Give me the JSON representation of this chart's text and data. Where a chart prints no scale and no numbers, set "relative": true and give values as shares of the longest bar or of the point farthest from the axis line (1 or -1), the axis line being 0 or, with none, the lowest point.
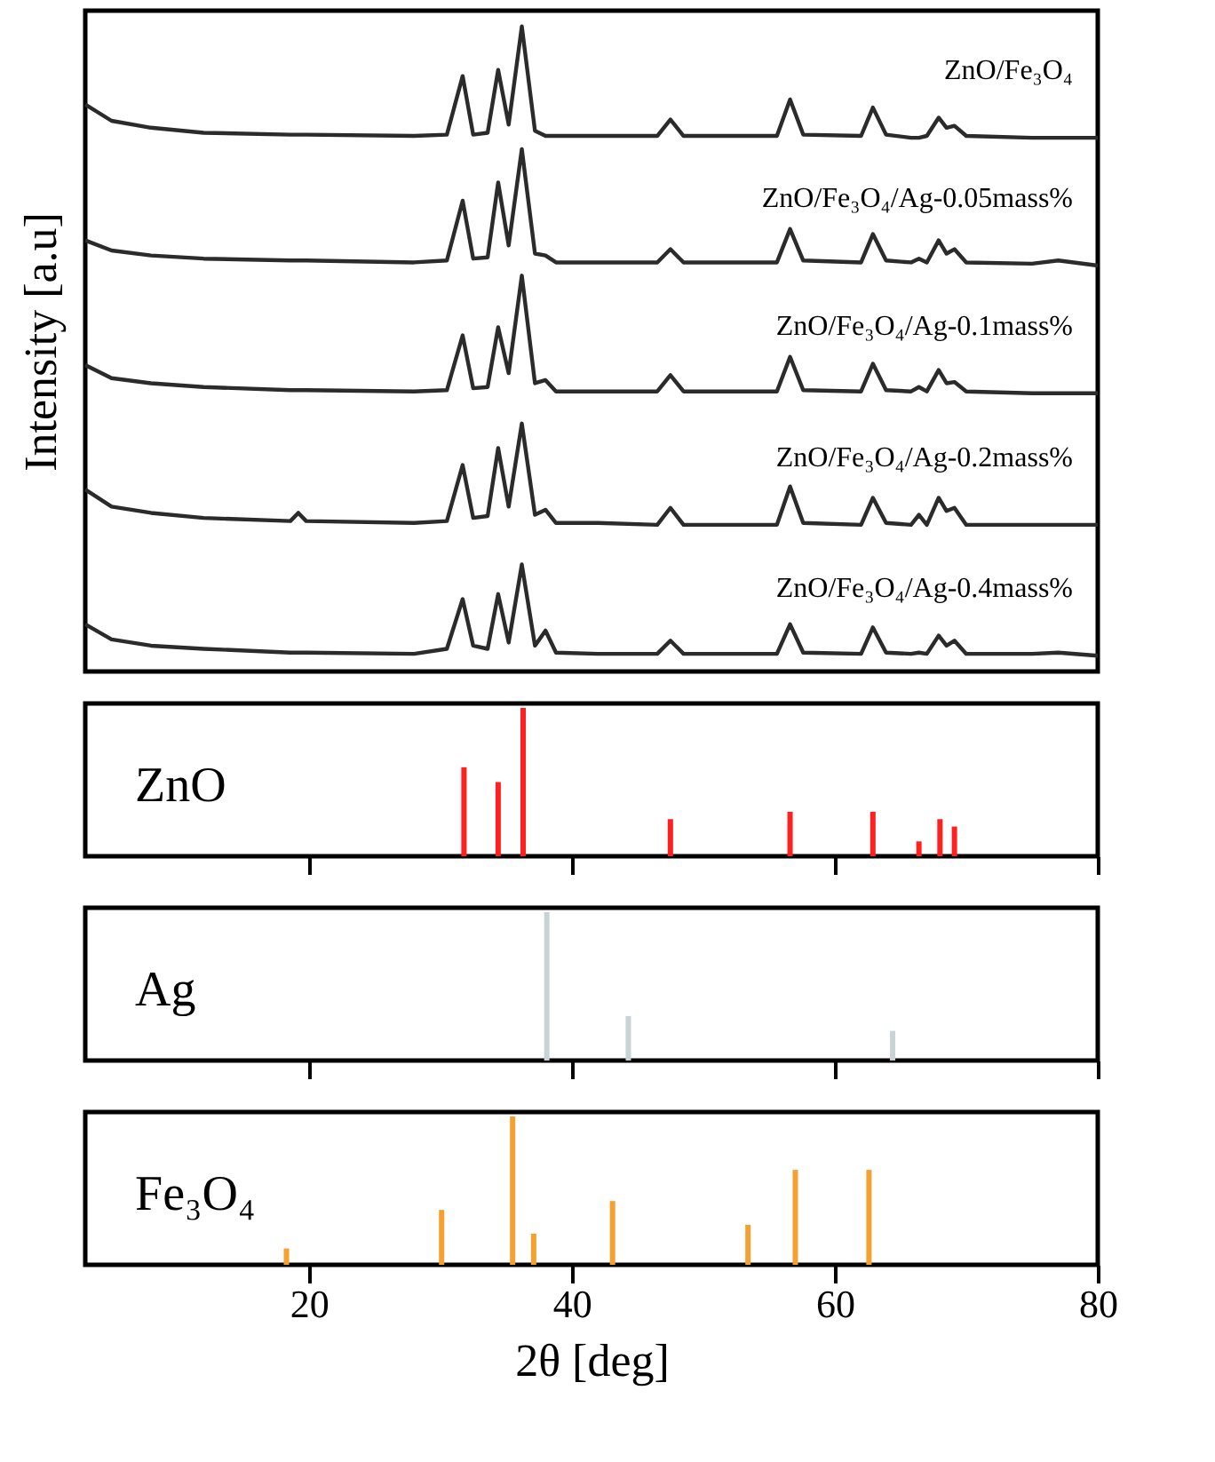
{
  "chart_data": [
    {
      "type": "line",
      "relative": true,
      "ylabel": "Intensity [a.u]",
      "xlim": [
        3,
        80
      ],
      "tick_labels": false,
      "x": [
        3,
        5,
        8,
        12,
        18.6,
        19.2,
        19.8,
        28,
        30.5,
        31.7,
        32.5,
        33.6,
        34.4,
        35.2,
        36.2,
        37.2,
        38,
        38.8,
        42,
        46.5,
        47.5,
        48.5,
        55.6,
        56.6,
        57.6,
        62,
        62.9,
        63.9,
        65.8,
        66.4,
        67,
        67.9,
        68.5,
        69.1,
        70,
        75,
        77,
        80
      ],
      "series": [
        {
          "name": "ZnO/Fe₃O₄",
          "color": "#2b2b2b",
          "values": [
            0.876,
            0.85,
            0.839,
            0.831,
            0.828,
            0.828,
            0.828,
            0.826,
            0.828,
            0.921,
            0.828,
            0.831,
            0.931,
            0.844,
            1.0,
            0.834,
            0.826,
            0.826,
            0.826,
            0.826,
            0.852,
            0.826,
            0.826,
            0.884,
            0.828,
            0.826,
            0.871,
            0.828,
            0.823,
            0.823,
            0.826,
            0.855,
            0.839,
            0.842,
            0.826,
            0.823,
            0.823,
            0.823
          ]
        },
        {
          "name": "ZnO/Fe₃O₄/Ag-0.05mass%",
          "color": "#2b2b2b",
          "values": [
            0.66,
            0.644,
            0.636,
            0.631,
            0.628,
            0.628,
            0.628,
            0.625,
            0.628,
            0.723,
            0.631,
            0.633,
            0.752,
            0.652,
            0.805,
            0.639,
            0.636,
            0.625,
            0.625,
            0.625,
            0.646,
            0.625,
            0.625,
            0.678,
            0.628,
            0.625,
            0.67,
            0.628,
            0.625,
            0.631,
            0.625,
            0.66,
            0.639,
            0.646,
            0.625,
            0.623,
            0.628,
            0.62
          ]
        },
        {
          "name": "ZnO/Fe₃O₄/Ag-0.1mass%",
          "color": "#2b2b2b",
          "values": [
            0.462,
            0.441,
            0.433,
            0.427,
            0.422,
            0.422,
            0.422,
            0.42,
            0.422,
            0.509,
            0.425,
            0.427,
            0.522,
            0.449,
            0.604,
            0.433,
            0.438,
            0.42,
            0.42,
            0.42,
            0.446,
            0.42,
            0.42,
            0.475,
            0.422,
            0.42,
            0.464,
            0.422,
            0.42,
            0.427,
            0.42,
            0.454,
            0.433,
            0.435,
            0.42,
            0.417,
            0.417,
            0.417
          ]
        },
        {
          "name": "ZnO/Fe₃O₄/Ag-0.2mass%",
          "color": "#2b2b2b",
          "values": [
            0.264,
            0.237,
            0.227,
            0.219,
            0.214,
            0.227,
            0.214,
            0.211,
            0.214,
            0.303,
            0.219,
            0.222,
            0.33,
            0.237,
            0.369,
            0.224,
            0.232,
            0.211,
            0.211,
            0.208,
            0.235,
            0.208,
            0.208,
            0.269,
            0.211,
            0.208,
            0.251,
            0.211,
            0.208,
            0.224,
            0.208,
            0.251,
            0.23,
            0.235,
            0.208,
            0.208,
            0.208,
            0.208
          ]
        },
        {
          "name": "ZnO/Fe₃O₄/Ag-0.4mass%",
          "color": "#2b2b2b",
          "values": [
            0.05,
            0.026,
            0.016,
            0.011,
            0.005,
            0.005,
            0.005,
            0.003,
            0.011,
            0.09,
            0.016,
            0.011,
            0.098,
            0.021,
            0.145,
            0.016,
            0.04,
            0.005,
            0.003,
            0.003,
            0.024,
            0.003,
            0.003,
            0.05,
            0.005,
            0.003,
            0.045,
            0.005,
            0.003,
            0.005,
            0.003,
            0.032,
            0.016,
            0.024,
            0.003,
            0.003,
            0.005,
            0
          ]
        }
      ]
    },
    {
      "type": "bar",
      "relative": true,
      "xlim": [
        3,
        80
      ],
      "xticks": [
        20,
        40,
        60,
        80
      ],
      "tick_labels": false,
      "series": [
        {
          "name": "ZnO",
          "color": "#ff2020",
          "x": [
            31.8,
            34.4,
            36.3,
            47.5,
            56.6,
            62.9,
            66.4,
            68.0,
            69.1
          ],
          "values": [
            0.6,
            0.5,
            1,
            0.25,
            0.3,
            0.3,
            0.1,
            0.25,
            0.2
          ]
        }
      ]
    },
    {
      "type": "bar",
      "relative": true,
      "xlim": [
        3,
        80
      ],
      "xticks": [
        20,
        40,
        60,
        80
      ],
      "tick_labels": false,
      "series": [
        {
          "name": "Ag",
          "color": "#c8d4d4",
          "x": [
            38.1,
            44.3,
            64.4
          ],
          "values": [
            1,
            0.3,
            0.2
          ]
        }
      ]
    },
    {
      "type": "bar",
      "relative": true,
      "xlim": [
        3,
        80
      ],
      "xticks": [
        20,
        40,
        60,
        80
      ],
      "tick_labels": "x",
      "xlabel": "2θ [deg]",
      "series": [
        {
          "name": "Fe₃O₄",
          "color": "#f5a030",
          "x": [
            18.3,
            30.1,
            35.5,
            37.1,
            43.1,
            53.4,
            57.0,
            62.6
          ],
          "values": [
            0.11,
            0.37,
            1,
            0.21,
            0.43,
            0.27,
            0.64,
            0.64
          ]
        }
      ]
    }
  ]
}
